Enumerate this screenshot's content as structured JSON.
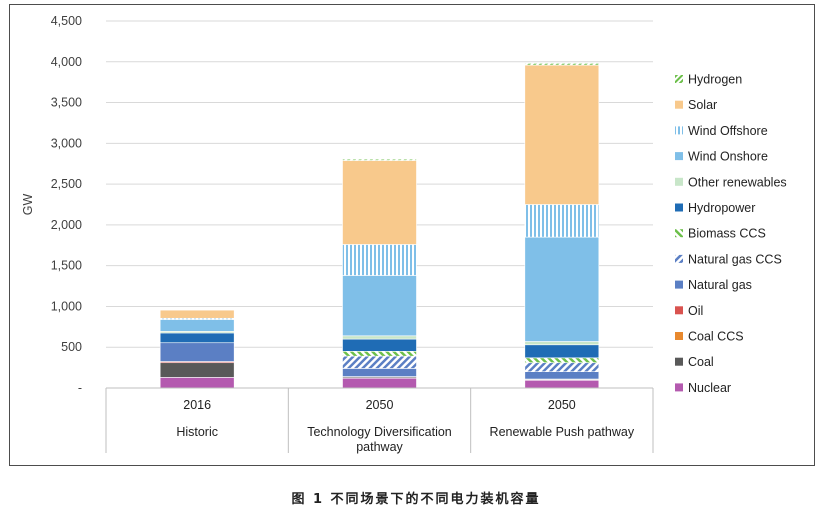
{
  "chart_data": {
    "type": "bar",
    "stacked": true,
    "ylabel": "GW",
    "ylim": [
      0,
      4500
    ],
    "yticks": [
      "-",
      "500",
      "1,000",
      "1,500",
      "2,000",
      "2,500",
      "3,000",
      "3,500",
      "4,000",
      "4,500"
    ],
    "ytick_values": [
      0,
      500,
      1000,
      1500,
      2000,
      2500,
      3000,
      3500,
      4000,
      4500
    ],
    "grid": true,
    "legend_position": "right",
    "categories": [
      {
        "year": "2016",
        "scenario": "Historic"
      },
      {
        "year": "2050",
        "scenario": "Technology Diversification pathway"
      },
      {
        "year": "2050",
        "scenario": "Renewable Push pathway"
      }
    ],
    "series": [
      {
        "name": "Nuclear",
        "color": "#b45aaf",
        "pattern": "solid",
        "values": [
          130,
          120,
          95
        ]
      },
      {
        "name": "Coal",
        "color": "#595959",
        "pattern": "solid",
        "values": [
          180,
          15,
          10
        ]
      },
      {
        "name": "Coal CCS",
        "color": "#e8892e",
        "pattern": "solid",
        "values": [
          0,
          5,
          5
        ]
      },
      {
        "name": "Oil",
        "color": "#d9534f",
        "pattern": "solid",
        "values": [
          15,
          0,
          0
        ]
      },
      {
        "name": "Natural gas",
        "color": "#5b7fc4",
        "pattern": "solid",
        "values": [
          230,
          100,
          90
        ]
      },
      {
        "name": "Natural gas CCS",
        "color": "#5b7fc4",
        "pattern": "diagonal",
        "values": [
          0,
          150,
          110
        ]
      },
      {
        "name": "Biomass CCS",
        "color": "#6cbf4a",
        "pattern": "diagonal",
        "values": [
          0,
          60,
          60
        ]
      },
      {
        "name": "Hydropower",
        "color": "#1f6cb5",
        "pattern": "solid",
        "values": [
          120,
          150,
          160
        ]
      },
      {
        "name": "Other renewables",
        "color": "#c8e6c9",
        "pattern": "solid",
        "values": [
          20,
          40,
          40
        ]
      },
      {
        "name": "Wind Onshore",
        "color": "#7fbfe8",
        "pattern": "solid",
        "values": [
          145,
          740,
          1280
        ]
      },
      {
        "name": "Wind Offshore",
        "color": "#7fbfe8",
        "pattern": "vertical",
        "values": [
          15,
          380,
          400
        ]
      },
      {
        "name": "Solar",
        "color": "#f8c98c",
        "pattern": "solid",
        "values": [
          100,
          1030,
          1710
        ]
      },
      {
        "name": "Hydrogen",
        "color": "#6cbf4a",
        "pattern": "diagonal",
        "values": [
          0,
          15,
          20
        ]
      }
    ]
  },
  "caption": "图 1  不同场景下的不同电力装机容量"
}
